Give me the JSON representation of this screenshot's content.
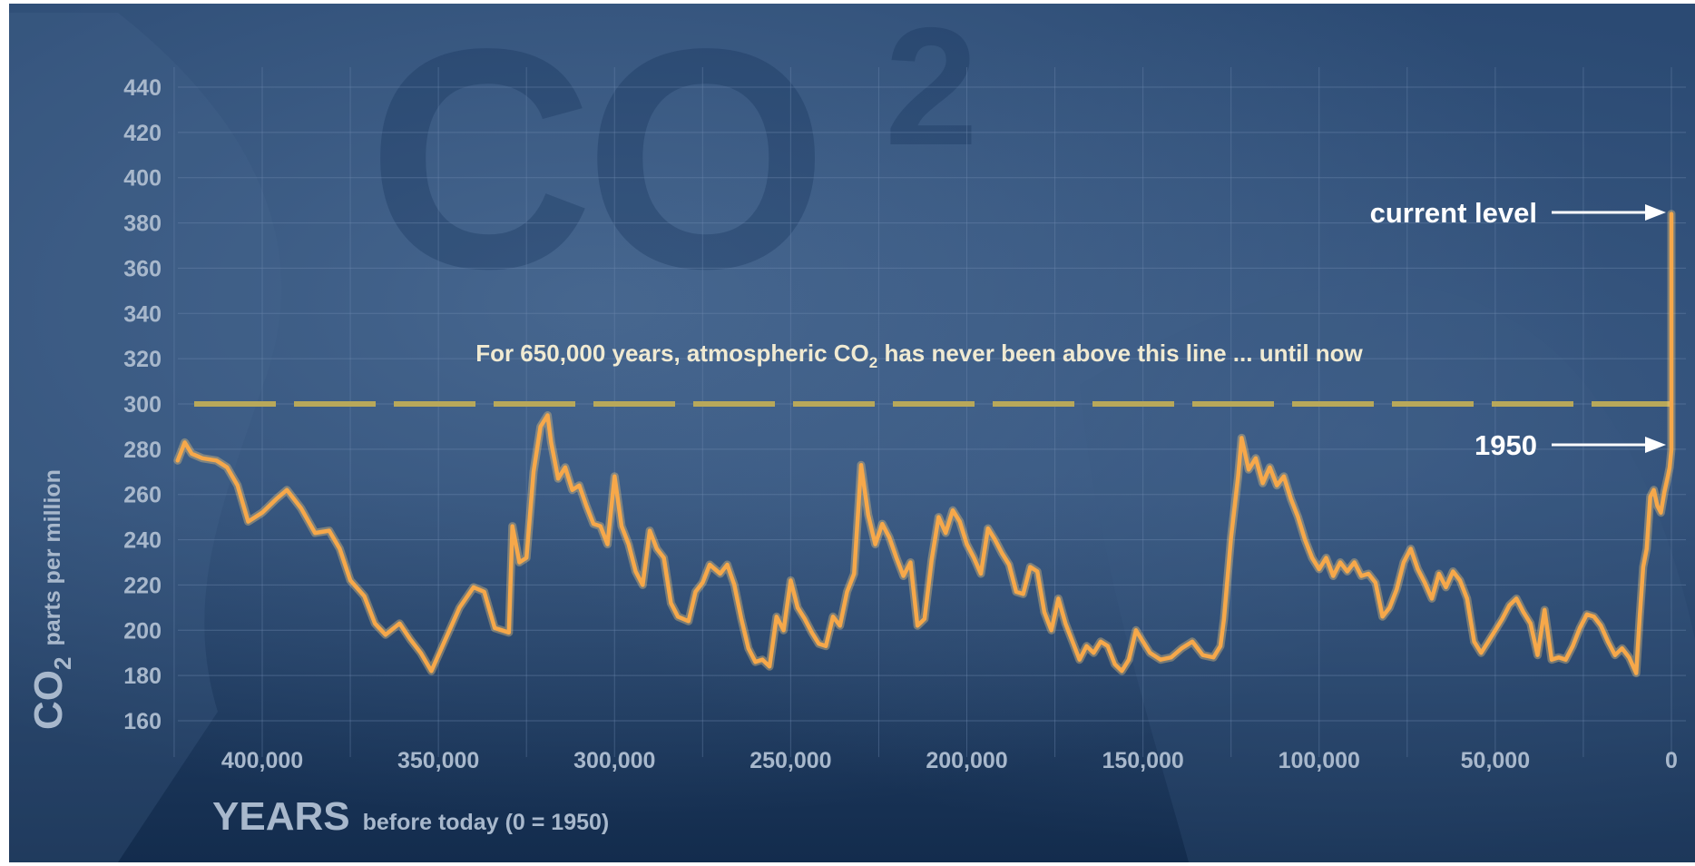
{
  "colors": {
    "background_top": "#2b4a73",
    "background_bottom": "#132c4d",
    "grid": "#6f8ab0",
    "series": "#f6a84a",
    "series_glow": "#ffd27a",
    "threshold_line": "#b8a85a",
    "tick_text": "#a8b8cc",
    "annotation_text": "#f0ead2",
    "arrow": "#ffffff"
  },
  "watermark": {
    "text": "CO",
    "subscript": "2"
  },
  "chart_data": {
    "type": "line",
    "xlabel": {
      "main": "YEARS",
      "sub": "before today (0 = 1950)"
    },
    "ylabel": {
      "main": "CO",
      "subscript": "2",
      "rest": "parts per million"
    },
    "xlim": [
      428000,
      -2000
    ],
    "ylim": [
      150,
      450
    ],
    "x_reversed": true,
    "grid": true,
    "x_ticks": [
      {
        "value": 400000,
        "label": "400,000"
      },
      {
        "value": 350000,
        "label": "350,000"
      },
      {
        "value": 300000,
        "label": "300,000"
      },
      {
        "value": 250000,
        "label": "250,000"
      },
      {
        "value": 200000,
        "label": "200,000"
      },
      {
        "value": 150000,
        "label": "150,000"
      },
      {
        "value": 100000,
        "label": "100,000"
      },
      {
        "value": 50000,
        "label": "50,000"
      },
      {
        "value": 0,
        "label": "0"
      }
    ],
    "y_ticks": [
      {
        "value": 160,
        "label": "160"
      },
      {
        "value": 180,
        "label": "180"
      },
      {
        "value": 200,
        "label": "200"
      },
      {
        "value": 220,
        "label": "220"
      },
      {
        "value": 240,
        "label": "240"
      },
      {
        "value": 260,
        "label": "260"
      },
      {
        "value": 280,
        "label": "280"
      },
      {
        "value": 300,
        "label": "300"
      },
      {
        "value": 320,
        "label": "320"
      },
      {
        "value": 340,
        "label": "340"
      },
      {
        "value": 360,
        "label": "360"
      },
      {
        "value": 380,
        "label": "380"
      },
      {
        "value": 400,
        "label": "400"
      },
      {
        "value": 420,
        "label": "420"
      },
      {
        "value": 440,
        "label": "440"
      }
    ],
    "threshold": {
      "value": 300,
      "style": "dashed"
    },
    "annotations": {
      "threshold_text": {
        "before": "For 650,000 years, atmospheric CO",
        "subscript": "2",
        "after": " has never been above this line ... until now"
      },
      "current_level": {
        "label": "current level",
        "x": 0,
        "y": 384
      },
      "year_1950": {
        "label": "1950",
        "x": 0,
        "y": 280
      }
    },
    "series": [
      {
        "points": [
          [
            424000,
            275
          ],
          [
            422000,
            283
          ],
          [
            420000,
            278
          ],
          [
            417000,
            276
          ],
          [
            413000,
            275
          ],
          [
            410000,
            272
          ],
          [
            407000,
            264
          ],
          [
            404000,
            248
          ],
          [
            400000,
            252
          ],
          [
            396000,
            258
          ],
          [
            393000,
            262
          ],
          [
            389000,
            254
          ],
          [
            385000,
            243
          ],
          [
            381000,
            244
          ],
          [
            378000,
            236
          ],
          [
            375000,
            222
          ],
          [
            371000,
            215
          ],
          [
            368000,
            203
          ],
          [
            365000,
            198
          ],
          [
            361000,
            203
          ],
          [
            358000,
            196
          ],
          [
            355000,
            190
          ],
          [
            352000,
            182
          ],
          [
            348000,
            196
          ],
          [
            344000,
            210
          ],
          [
            340000,
            219
          ],
          [
            337000,
            217
          ],
          [
            334000,
            201
          ],
          [
            330000,
            199
          ],
          [
            329000,
            246
          ],
          [
            327000,
            230
          ],
          [
            325000,
            232
          ],
          [
            323000,
            270
          ],
          [
            321000,
            290
          ],
          [
            319000,
            295
          ],
          [
            318000,
            283
          ],
          [
            316000,
            267
          ],
          [
            314000,
            272
          ],
          [
            312000,
            262
          ],
          [
            310000,
            264
          ],
          [
            308000,
            255
          ],
          [
            306000,
            247
          ],
          [
            304000,
            246
          ],
          [
            302000,
            238
          ],
          [
            300000,
            268
          ],
          [
            298000,
            246
          ],
          [
            296000,
            238
          ],
          [
            294000,
            226
          ],
          [
            292000,
            220
          ],
          [
            290000,
            244
          ],
          [
            288000,
            236
          ],
          [
            286000,
            232
          ],
          [
            284000,
            212
          ],
          [
            282000,
            206
          ],
          [
            279000,
            204
          ],
          [
            277000,
            217
          ],
          [
            275000,
            221
          ],
          [
            273000,
            229
          ],
          [
            270000,
            225
          ],
          [
            268000,
            229
          ],
          [
            266000,
            220
          ],
          [
            264000,
            205
          ],
          [
            262000,
            192
          ],
          [
            260000,
            186
          ],
          [
            258000,
            187
          ],
          [
            256000,
            184
          ],
          [
            254000,
            206
          ],
          [
            252000,
            200
          ],
          [
            250000,
            222
          ],
          [
            248000,
            210
          ],
          [
            246000,
            205
          ],
          [
            244000,
            199
          ],
          [
            242000,
            194
          ],
          [
            240000,
            193
          ],
          [
            238000,
            206
          ],
          [
            236000,
            202
          ],
          [
            234000,
            217
          ],
          [
            232000,
            225
          ],
          [
            230000,
            273
          ],
          [
            228000,
            251
          ],
          [
            226000,
            238
          ],
          [
            224000,
            247
          ],
          [
            222000,
            241
          ],
          [
            220000,
            232
          ],
          [
            218000,
            224
          ],
          [
            216000,
            230
          ],
          [
            214000,
            202
          ],
          [
            212000,
            205
          ],
          [
            210000,
            231
          ],
          [
            208000,
            250
          ],
          [
            206000,
            243
          ],
          [
            204000,
            253
          ],
          [
            202000,
            248
          ],
          [
            200000,
            238
          ],
          [
            198000,
            232
          ],
          [
            196000,
            225
          ],
          [
            194000,
            245
          ],
          [
            192000,
            240
          ],
          [
            190000,
            234
          ],
          [
            188000,
            229
          ],
          [
            186000,
            217
          ],
          [
            184000,
            216
          ],
          [
            182000,
            228
          ],
          [
            180000,
            226
          ],
          [
            178000,
            208
          ],
          [
            176000,
            200
          ],
          [
            174000,
            214
          ],
          [
            172000,
            203
          ],
          [
            170000,
            195
          ],
          [
            168000,
            187
          ],
          [
            166000,
            193
          ],
          [
            164000,
            190
          ],
          [
            162000,
            195
          ],
          [
            160000,
            193
          ],
          [
            158000,
            185
          ],
          [
            156000,
            182
          ],
          [
            154000,
            187
          ],
          [
            152000,
            200
          ],
          [
            150000,
            195
          ],
          [
            148000,
            190
          ],
          [
            145000,
            187
          ],
          [
            142000,
            188
          ],
          [
            139000,
            192
          ],
          [
            136000,
            195
          ],
          [
            133000,
            189
          ],
          [
            130000,
            188
          ],
          [
            128000,
            193
          ],
          [
            127000,
            205
          ],
          [
            125000,
            241
          ],
          [
            123000,
            268
          ],
          [
            122000,
            285
          ],
          [
            120000,
            271
          ],
          [
            118000,
            276
          ],
          [
            116000,
            265
          ],
          [
            114000,
            272
          ],
          [
            112000,
            264
          ],
          [
            110000,
            268
          ],
          [
            108000,
            258
          ],
          [
            106000,
            250
          ],
          [
            104000,
            240
          ],
          [
            102000,
            232
          ],
          [
            100000,
            227
          ],
          [
            98000,
            232
          ],
          [
            96000,
            224
          ],
          [
            94000,
            230
          ],
          [
            92000,
            226
          ],
          [
            90000,
            230
          ],
          [
            88000,
            224
          ],
          [
            86000,
            225
          ],
          [
            84000,
            221
          ],
          [
            82000,
            206
          ],
          [
            80000,
            210
          ],
          [
            78000,
            218
          ],
          [
            76000,
            230
          ],
          [
            74000,
            236
          ],
          [
            72000,
            227
          ],
          [
            70000,
            221
          ],
          [
            68000,
            214
          ],
          [
            66000,
            225
          ],
          [
            64000,
            219
          ],
          [
            62000,
            226
          ],
          [
            60000,
            222
          ],
          [
            58000,
            214
          ],
          [
            56000,
            195
          ],
          [
            54000,
            190
          ],
          [
            52000,
            195
          ],
          [
            50000,
            200
          ],
          [
            48000,
            205
          ],
          [
            46000,
            211
          ],
          [
            44000,
            214
          ],
          [
            42000,
            208
          ],
          [
            40000,
            203
          ],
          [
            38000,
            189
          ],
          [
            36000,
            209
          ],
          [
            34000,
            187
          ],
          [
            32000,
            188
          ],
          [
            30000,
            187
          ],
          [
            28000,
            193
          ],
          [
            26000,
            201
          ],
          [
            24000,
            207
          ],
          [
            22000,
            206
          ],
          [
            20000,
            202
          ],
          [
            18000,
            195
          ],
          [
            16000,
            189
          ],
          [
            14000,
            192
          ],
          [
            12000,
            188
          ],
          [
            10000,
            181
          ],
          [
            9000,
            206
          ],
          [
            8000,
            228
          ],
          [
            7000,
            236
          ],
          [
            6000,
            259
          ],
          [
            5000,
            262
          ],
          [
            4000,
            255
          ],
          [
            3000,
            252
          ],
          [
            2000,
            261
          ],
          [
            1000,
            268
          ],
          [
            500,
            272
          ],
          [
            0,
            280
          ],
          [
            0,
            300
          ],
          [
            0,
            340
          ],
          [
            0,
            384
          ]
        ]
      }
    ]
  }
}
